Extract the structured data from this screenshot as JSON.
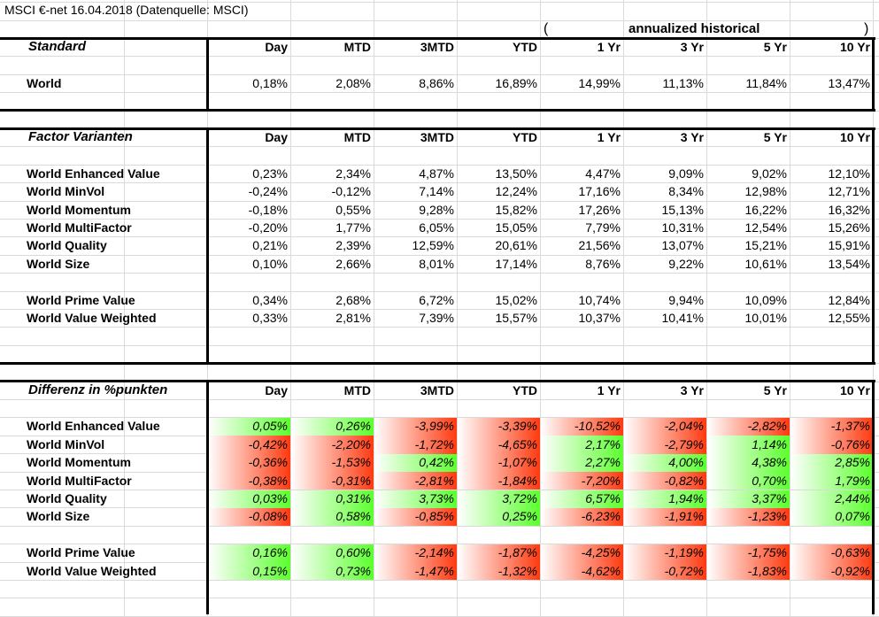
{
  "sheet_title": "MSCI €-net 16.04.2018 (Datenquelle: MSCI)",
  "annualized": {
    "open": "(",
    "label": "annualized historical",
    "close": ")"
  },
  "columns": [
    "Day",
    "MTD",
    "3MTD",
    "YTD",
    "1 Yr",
    "3 Yr",
    "5 Yr",
    "10 Yr"
  ],
  "colors": {
    "positive": "#5cff2e",
    "negative": "#ff3a10",
    "gridline": "#dadada"
  },
  "sections": [
    {
      "heading": "Standard",
      "rows": [
        {
          "label": "World",
          "values": [
            "0,18%",
            "2,08%",
            "8,86%",
            "16,89%",
            "14,99%",
            "11,13%",
            "11,84%",
            "13,47%"
          ]
        }
      ]
    },
    {
      "heading": "Factor Varianten",
      "rows": [
        {
          "label": "World Enhanced Value",
          "values": [
            "0,23%",
            "2,34%",
            "4,87%",
            "13,50%",
            "4,47%",
            "9,09%",
            "9,02%",
            "12,10%"
          ]
        },
        {
          "label": "World MinVol",
          "values": [
            "-0,24%",
            "-0,12%",
            "7,14%",
            "12,24%",
            "17,16%",
            "8,34%",
            "12,98%",
            "12,71%"
          ]
        },
        {
          "label": "World Momentum",
          "values": [
            "-0,18%",
            "0,55%",
            "9,28%",
            "15,82%",
            "17,26%",
            "15,13%",
            "16,22%",
            "16,32%"
          ]
        },
        {
          "label": "World MultiFactor",
          "values": [
            "-0,20%",
            "1,77%",
            "6,05%",
            "15,05%",
            "7,79%",
            "10,31%",
            "12,54%",
            "15,26%"
          ]
        },
        {
          "label": "World Quality",
          "values": [
            "0,21%",
            "2,39%",
            "12,59%",
            "20,61%",
            "21,56%",
            "13,07%",
            "15,21%",
            "15,91%"
          ]
        },
        {
          "label": "World Size",
          "values": [
            "0,10%",
            "2,66%",
            "8,01%",
            "17,14%",
            "8,76%",
            "9,22%",
            "10,61%",
            "13,54%"
          ]
        },
        {
          "label": "World Prime Value",
          "values": [
            "0,34%",
            "2,68%",
            "6,72%",
            "15,02%",
            "10,74%",
            "9,94%",
            "10,09%",
            "12,84%"
          ]
        },
        {
          "label": "World Value Weighted",
          "values": [
            "0,33%",
            "2,81%",
            "7,39%",
            "15,57%",
            "10,37%",
            "10,41%",
            "10,01%",
            "12,55%"
          ]
        }
      ]
    },
    {
      "heading": "Differenz in %punkten",
      "rows": [
        {
          "label": "World Enhanced Value",
          "values": [
            "0,05%",
            "0,26%",
            "-3,99%",
            "-3,39%",
            "-10,52%",
            "-2,04%",
            "-2,82%",
            "-1,37%"
          ]
        },
        {
          "label": "World MinVol",
          "values": [
            "-0,42%",
            "-2,20%",
            "-1,72%",
            "-4,65%",
            "2,17%",
            "-2,79%",
            "1,14%",
            "-0,76%"
          ]
        },
        {
          "label": "World Momentum",
          "values": [
            "-0,36%",
            "-1,53%",
            "0,42%",
            "-1,07%",
            "2,27%",
            "4,00%",
            "4,38%",
            "2,85%"
          ]
        },
        {
          "label": "World MultiFactor",
          "values": [
            "-0,38%",
            "-0,31%",
            "-2,81%",
            "-1,84%",
            "-7,20%",
            "-0,82%",
            "0,70%",
            "1,79%"
          ]
        },
        {
          "label": "World Quality",
          "values": [
            "0,03%",
            "0,31%",
            "3,73%",
            "3,72%",
            "6,57%",
            "1,94%",
            "3,37%",
            "2,44%"
          ]
        },
        {
          "label": "World Size",
          "values": [
            "-0,08%",
            "0,58%",
            "-0,85%",
            "0,25%",
            "-6,23%",
            "-1,91%",
            "-1,23%",
            "0,07%"
          ]
        },
        {
          "label": "World Prime Value",
          "values": [
            "0,16%",
            "0,60%",
            "-2,14%",
            "-1,87%",
            "-4,25%",
            "-1,19%",
            "-1,75%",
            "-0,63%"
          ]
        },
        {
          "label": "World Value Weighted",
          "values": [
            "0,15%",
            "0,73%",
            "-1,47%",
            "-1,32%",
            "-4,62%",
            "-0,72%",
            "-1,83%",
            "-0,92%"
          ]
        }
      ]
    }
  ]
}
